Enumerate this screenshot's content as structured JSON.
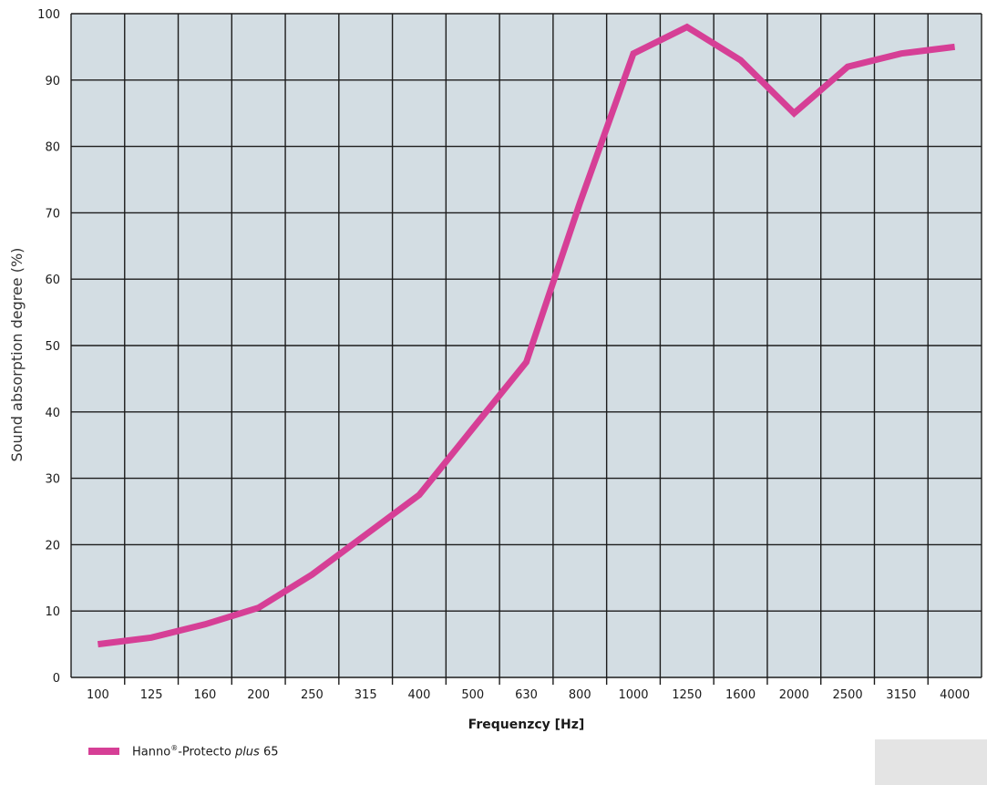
{
  "chart_data": {
    "type": "line",
    "title": "",
    "xlabel": "Frequenzcy [Hz]",
    "ylabel": "Sound absorption degree (%)",
    "ylim": [
      0,
      100
    ],
    "yticks": [
      0,
      10,
      20,
      30,
      40,
      50,
      60,
      70,
      80,
      90,
      100
    ],
    "categories": [
      "100",
      "125",
      "160",
      "200",
      "250",
      "315",
      "400",
      "500",
      "630",
      "800",
      "1000",
      "1250",
      "1600",
      "2000",
      "2500",
      "3150",
      "4000"
    ],
    "grid": true,
    "series": [
      {
        "name": "Hanno®-Protecto plus 65",
        "color": "#d63f96",
        "values": [
          5,
          6,
          8,
          10.5,
          15.5,
          21.5,
          27.5,
          37.5,
          47.5,
          71.5,
          94,
          98,
          93,
          85,
          92,
          94,
          95
        ]
      }
    ]
  },
  "legend": {
    "brand": "Hanno",
    "reg": "®",
    "mid": "-Protecto ",
    "italic": "plus",
    "suffix": " 65"
  },
  "colors": {
    "plot_bg": "#d3dde3",
    "grid": "#1c1c1c",
    "line": "#d63f96"
  }
}
